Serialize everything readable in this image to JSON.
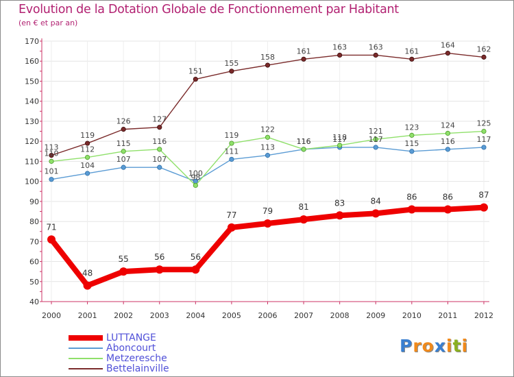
{
  "title": "Evolution de la Dotation Globale de Fonctionnement par Habitant",
  "subtitle": "(en € et par an)",
  "chart_data": {
    "type": "line",
    "title": "Evolution de la Dotation Globale de Fonctionnement par Habitant",
    "ylabel": "(en € et par an)",
    "xlabel": "",
    "ylim": [
      40,
      170
    ],
    "yticks": [
      40,
      50,
      60,
      70,
      80,
      90,
      100,
      110,
      120,
      130,
      140,
      150,
      160,
      170
    ],
    "grid": true,
    "legend": "bottom-left",
    "x": [
      "2000",
      "2001",
      "2002",
      "2003",
      "2004",
      "2005",
      "2006",
      "2007",
      "2008",
      "2009",
      "2010",
      "2011",
      "2012"
    ],
    "series": [
      {
        "name": "LUTTANGE",
        "color": "#ee0000",
        "values": [
          71,
          48,
          55,
          56,
          56,
          77,
          79,
          81,
          83,
          84,
          86,
          86,
          87
        ]
      },
      {
        "name": "Aboncourt",
        "color": "#5a9bd4",
        "values": [
          101,
          104,
          107,
          107,
          100,
          111,
          113,
          116,
          117,
          117,
          115,
          116,
          117
        ]
      },
      {
        "name": "Metzeresche",
        "color": "#8fe06a",
        "values": [
          110,
          112,
          115,
          116,
          98,
          119,
          122,
          116,
          118,
          121,
          123,
          124,
          125
        ]
      },
      {
        "name": "Bettelainville",
        "color": "#7a2a2a",
        "values": [
          113,
          119,
          126,
          127,
          151,
          155,
          158,
          161,
          163,
          163,
          161,
          164,
          162
        ]
      }
    ]
  },
  "logo": {
    "text": "Proxiti",
    "letters": [
      "P",
      "r",
      "o",
      "x",
      "i",
      "t",
      "i"
    ],
    "colors": [
      "#3a7fd0",
      "#f08a1c",
      "#f08a1c",
      "#3a7fd0",
      "#f08a1c",
      "#8ab020",
      "#f08a1c"
    ]
  }
}
